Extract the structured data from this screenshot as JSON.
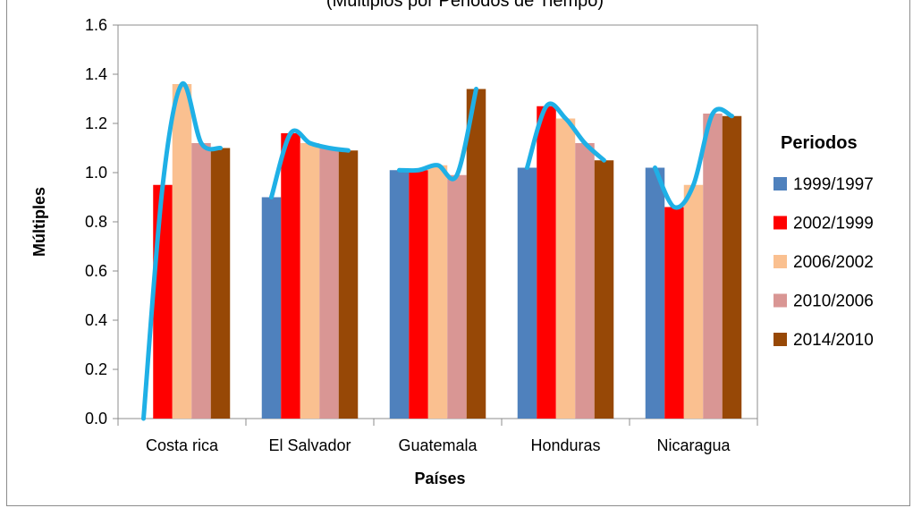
{
  "chart_data": {
    "type": "bar",
    "title": "(Multiplos por Periodos de Tiempo)",
    "xlabel": "Países",
    "ylabel": "Múltiples",
    "ylim": [
      0,
      1.6
    ],
    "yticks": [
      "0.0",
      "0.2",
      "0.4",
      "0.6",
      "0.8",
      "1.0",
      "1.2",
      "1.4",
      "1.6"
    ],
    "categories": [
      "Costa rica",
      "El Salvador",
      "Guatemala",
      "Honduras",
      "Nicaragua"
    ],
    "legend_title": "Periodos",
    "legend_position": "right",
    "grid": false,
    "series": [
      {
        "name": "1999/1997",
        "color": "#4f81bd",
        "values": [
          0.0,
          0.9,
          1.01,
          1.02,
          1.02
        ]
      },
      {
        "name": "2002/1999",
        "color": "#ff0000",
        "values": [
          0.95,
          1.16,
          1.01,
          1.27,
          0.86
        ]
      },
      {
        "name": "2006/2002",
        "color": "#fac090",
        "values": [
          1.36,
          1.12,
          1.03,
          1.22,
          0.95
        ]
      },
      {
        "name": "2010/2006",
        "color": "#d99694",
        "values": [
          1.12,
          1.1,
          0.99,
          1.12,
          1.24
        ]
      },
      {
        "name": "2014/2010",
        "color": "#974806",
        "values": [
          1.1,
          1.09,
          1.34,
          1.05,
          1.23
        ]
      }
    ],
    "overlay_line_color": "#1fb0e6"
  }
}
